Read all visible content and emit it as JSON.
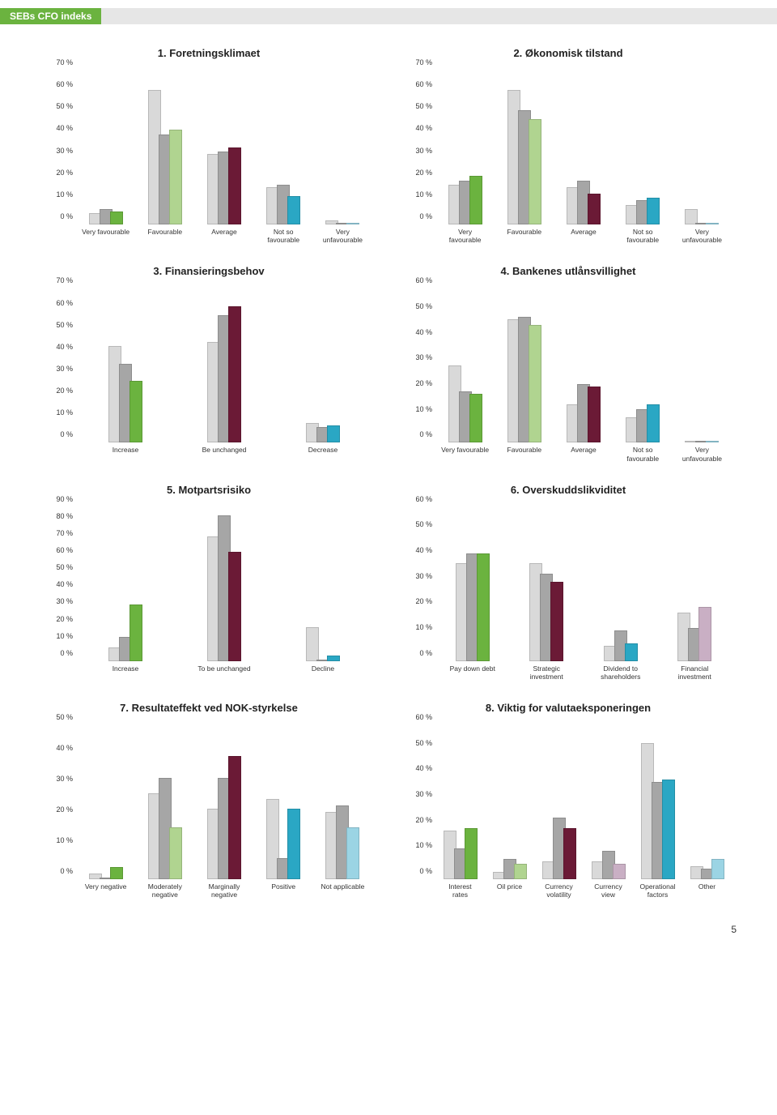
{
  "header": {
    "title": "SEBs CFO indeks"
  },
  "page_number": "5",
  "palette": {
    "s1": "#d9d9d9",
    "s2": "#a6a6a6",
    "s3_green": "#6bb33f",
    "s3_lightgreen": "#b0d490",
    "s3_darkred": "#6b1a36",
    "s3_teal": "#2aa7c4",
    "s3_lightteal": "#9bd4e4",
    "s3_mauve": "#c9afc4"
  },
  "charts": [
    {
      "id": "c1",
      "title": "1. Foretningsklimaet",
      "ylim": [
        0,
        70
      ],
      "ytick_step": 10,
      "categories": [
        "Very favourable",
        "Favourable",
        "Average",
        "Not so\nfavourable",
        "Very\nunfavourable"
      ],
      "series": [
        {
          "values": [
            5,
            61,
            32,
            17,
            2
          ],
          "colors": [
            "#d9d9d9",
            "#d9d9d9",
            "#d9d9d9",
            "#d9d9d9",
            "#d9d9d9"
          ]
        },
        {
          "values": [
            7,
            41,
            33,
            18,
            0
          ],
          "colors": [
            "#a6a6a6",
            "#a6a6a6",
            "#a6a6a6",
            "#a6a6a6",
            "#a6a6a6"
          ]
        },
        {
          "values": [
            6,
            43,
            35,
            13,
            0
          ],
          "colors": [
            "#6bb33f",
            "#b0d490",
            "#6b1a36",
            "#2aa7c4",
            "#9bd4e4"
          ]
        }
      ]
    },
    {
      "id": "c2",
      "title": "2. Økonomisk tilstand",
      "ylim": [
        0,
        70
      ],
      "ytick_step": 10,
      "categories": [
        "Very\nfavourable",
        "Favourable",
        "Average",
        "Not so\nfavourable",
        "Very\nunfavourable"
      ],
      "series": [
        {
          "values": [
            18,
            61,
            17,
            9,
            7
          ],
          "colors": [
            "#d9d9d9",
            "#d9d9d9",
            "#d9d9d9",
            "#d9d9d9",
            "#d9d9d9"
          ]
        },
        {
          "values": [
            20,
            52,
            20,
            11,
            0
          ],
          "colors": [
            "#a6a6a6",
            "#a6a6a6",
            "#a6a6a6",
            "#a6a6a6",
            "#a6a6a6"
          ]
        },
        {
          "values": [
            22,
            48,
            14,
            12,
            0
          ],
          "colors": [
            "#6bb33f",
            "#b0d490",
            "#6b1a36",
            "#2aa7c4",
            "#9bd4e4"
          ]
        }
      ]
    },
    {
      "id": "c3",
      "title": "3. Finansieringsbehov",
      "ylim": [
        0,
        70
      ],
      "ytick_step": 10,
      "categories": [
        "Increase",
        "Be unchanged",
        "Decrease"
      ],
      "series": [
        {
          "values": [
            44,
            46,
            9
          ],
          "colors": [
            "#d9d9d9",
            "#d9d9d9",
            "#d9d9d9"
          ]
        },
        {
          "values": [
            36,
            58,
            7
          ],
          "colors": [
            "#a6a6a6",
            "#a6a6a6",
            "#a6a6a6"
          ]
        },
        {
          "values": [
            28,
            62,
            8
          ],
          "colors": [
            "#6bb33f",
            "#6b1a36",
            "#2aa7c4"
          ]
        }
      ]
    },
    {
      "id": "c4",
      "title": "4. Bankenes utlånsvillighet",
      "ylim": [
        0,
        60
      ],
      "ytick_step": 10,
      "categories": [
        "Very favourable",
        "Favourable",
        "Average",
        "Not so\nfavourable",
        "Very\nunfavourable"
      ],
      "series": [
        {
          "values": [
            30,
            48,
            15,
            10,
            0
          ],
          "colors": [
            "#d9d9d9",
            "#d9d9d9",
            "#d9d9d9",
            "#d9d9d9",
            "#d9d9d9"
          ]
        },
        {
          "values": [
            20,
            49,
            23,
            13,
            0
          ],
          "colors": [
            "#a6a6a6",
            "#a6a6a6",
            "#a6a6a6",
            "#a6a6a6",
            "#a6a6a6"
          ]
        },
        {
          "values": [
            19,
            46,
            22,
            15,
            0
          ],
          "colors": [
            "#6bb33f",
            "#b0d490",
            "#6b1a36",
            "#2aa7c4",
            "#9bd4e4"
          ]
        }
      ]
    },
    {
      "id": "c5",
      "title": "5. Motpartsrisiko",
      "ylim": [
        0,
        90
      ],
      "ytick_step": 10,
      "categories": [
        "Increase",
        "To be unchanged",
        "Decline"
      ],
      "series": [
        {
          "values": [
            8,
            73,
            20
          ],
          "colors": [
            "#d9d9d9",
            "#d9d9d9",
            "#d9d9d9"
          ]
        },
        {
          "values": [
            14,
            85,
            0
          ],
          "colors": [
            "#a6a6a6",
            "#a6a6a6",
            "#a6a6a6"
          ]
        },
        {
          "values": [
            33,
            64,
            3
          ],
          "colors": [
            "#6bb33f",
            "#6b1a36",
            "#2aa7c4"
          ]
        }
      ]
    },
    {
      "id": "c6",
      "title": "6. Overskuddslikviditet",
      "ylim": [
        0,
        60
      ],
      "ytick_step": 10,
      "categories": [
        "Pay down debt",
        "Strategic\ninvestment",
        "Dividend to\nshareholders",
        "Financial\ninvestment"
      ],
      "series": [
        {
          "values": [
            38,
            38,
            6,
            19
          ],
          "colors": [
            "#d9d9d9",
            "#d9d9d9",
            "#d9d9d9",
            "#d9d9d9"
          ]
        },
        {
          "values": [
            42,
            34,
            12,
            13
          ],
          "colors": [
            "#a6a6a6",
            "#a6a6a6",
            "#a6a6a6",
            "#a6a6a6"
          ]
        },
        {
          "values": [
            42,
            31,
            7,
            21
          ],
          "colors": [
            "#6bb33f",
            "#6b1a36",
            "#2aa7c4",
            "#c9afc4"
          ]
        }
      ]
    },
    {
      "id": "c7",
      "title": "7. Resultateffekt ved NOK-styrkelse",
      "ylim": [
        0,
        50
      ],
      "ytick_step": 10,
      "categories": [
        "Very negative",
        "Moderately\nnegative",
        "Marginally\nnegative",
        "Positive",
        "Not applicable"
      ],
      "series": [
        {
          "values": [
            2,
            28,
            23,
            26,
            22
          ],
          "colors": [
            "#d9d9d9",
            "#d9d9d9",
            "#d9d9d9",
            "#d9d9d9",
            "#d9d9d9"
          ]
        },
        {
          "values": [
            0,
            33,
            33,
            7,
            24
          ],
          "colors": [
            "#a6a6a6",
            "#a6a6a6",
            "#a6a6a6",
            "#a6a6a6",
            "#a6a6a6"
          ]
        },
        {
          "values": [
            4,
            17,
            40,
            23,
            17
          ],
          "colors": [
            "#6bb33f",
            "#b0d490",
            "#6b1a36",
            "#2aa7c4",
            "#9bd4e4"
          ]
        }
      ]
    },
    {
      "id": "c8",
      "title": "8. Viktig for valutaeksponeringen",
      "ylim": [
        0,
        60
      ],
      "ytick_step": 10,
      "categories": [
        "Interest\nrates",
        "Oil price",
        "Currency\nvolatility",
        "Currency\nview",
        "Operational\nfactors",
        "Other"
      ],
      "series": [
        {
          "values": [
            19,
            3,
            7,
            7,
            53,
            5
          ],
          "colors": [
            "#d9d9d9",
            "#d9d9d9",
            "#d9d9d9",
            "#d9d9d9",
            "#d9d9d9",
            "#d9d9d9"
          ]
        },
        {
          "values": [
            12,
            8,
            24,
            11,
            38,
            4
          ],
          "colors": [
            "#a6a6a6",
            "#a6a6a6",
            "#a6a6a6",
            "#a6a6a6",
            "#a6a6a6",
            "#a6a6a6"
          ]
        },
        {
          "values": [
            20,
            6,
            20,
            6,
            39,
            8
          ],
          "colors": [
            "#6bb33f",
            "#b0d490",
            "#6b1a36",
            "#c9afc4",
            "#2aa7c4",
            "#9bd4e4"
          ]
        }
      ]
    }
  ]
}
